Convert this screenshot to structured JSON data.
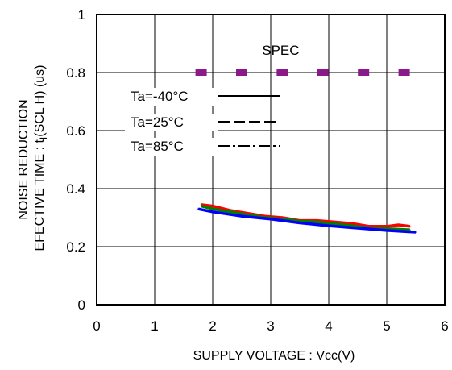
{
  "chart_data": {
    "type": "line",
    "xlabel": "SUPPLY VOLTAGE : Vcc(V)",
    "ylabel_line1": "NOISE REDUCTION",
    "ylabel_line2_prefix": "EFECTIVE TIME : t",
    "ylabel_line2_sub": "I",
    "ylabel_line2_suffix": "(SCL H) (us)",
    "xlim": [
      0,
      6
    ],
    "ylim": [
      0,
      1
    ],
    "x_ticks": [
      "0",
      "1",
      "2",
      "3",
      "4",
      "5",
      "6"
    ],
    "y_ticks": [
      "0",
      "0.2",
      "0.4",
      "0.6",
      "0.8",
      "1"
    ],
    "grid": true,
    "spec": {
      "label": "SPEC",
      "value": 0.8,
      "x": [
        1.8,
        2.5,
        3.2,
        3.9,
        4.6,
        5.3
      ],
      "color": "#8a1a8a"
    },
    "legend": {
      "position": "top-left",
      "entries": [
        {
          "label": "Ta=-40°C",
          "style": "solid"
        },
        {
          "label": "Ta=25°C",
          "style": "dashed"
        },
        {
          "label": "Ta=85°C",
          "style": "dashdot"
        }
      ]
    },
    "series": [
      {
        "color": "#ff0000",
        "points": [
          [
            1.8,
            0.345
          ],
          [
            2.0,
            0.34
          ],
          [
            2.3,
            0.325
          ],
          [
            2.6,
            0.315
          ],
          [
            2.9,
            0.305
          ],
          [
            3.2,
            0.3
          ],
          [
            3.5,
            0.29
          ],
          [
            3.8,
            0.29
          ],
          [
            4.1,
            0.285
          ],
          [
            4.4,
            0.28
          ],
          [
            4.7,
            0.27
          ],
          [
            5.0,
            0.27
          ],
          [
            5.2,
            0.275
          ],
          [
            5.4,
            0.27
          ]
        ]
      },
      {
        "color": "#008000",
        "points": [
          [
            1.8,
            0.34
          ],
          [
            2.0,
            0.33
          ],
          [
            2.3,
            0.32
          ],
          [
            2.6,
            0.31
          ],
          [
            2.9,
            0.3
          ],
          [
            3.2,
            0.295
          ],
          [
            3.5,
            0.288
          ],
          [
            3.8,
            0.285
          ],
          [
            4.1,
            0.278
          ],
          [
            4.4,
            0.272
          ],
          [
            4.7,
            0.265
          ],
          [
            5.0,
            0.262
          ],
          [
            5.2,
            0.26
          ],
          [
            5.4,
            0.258
          ]
        ]
      },
      {
        "color": "#0000ff",
        "points": [
          [
            1.75,
            0.33
          ],
          [
            2.0,
            0.32
          ],
          [
            2.5,
            0.305
          ],
          [
            3.0,
            0.295
          ],
          [
            3.5,
            0.282
          ],
          [
            4.0,
            0.272
          ],
          [
            4.5,
            0.264
          ],
          [
            5.0,
            0.256
          ],
          [
            5.5,
            0.25
          ]
        ]
      }
    ]
  }
}
